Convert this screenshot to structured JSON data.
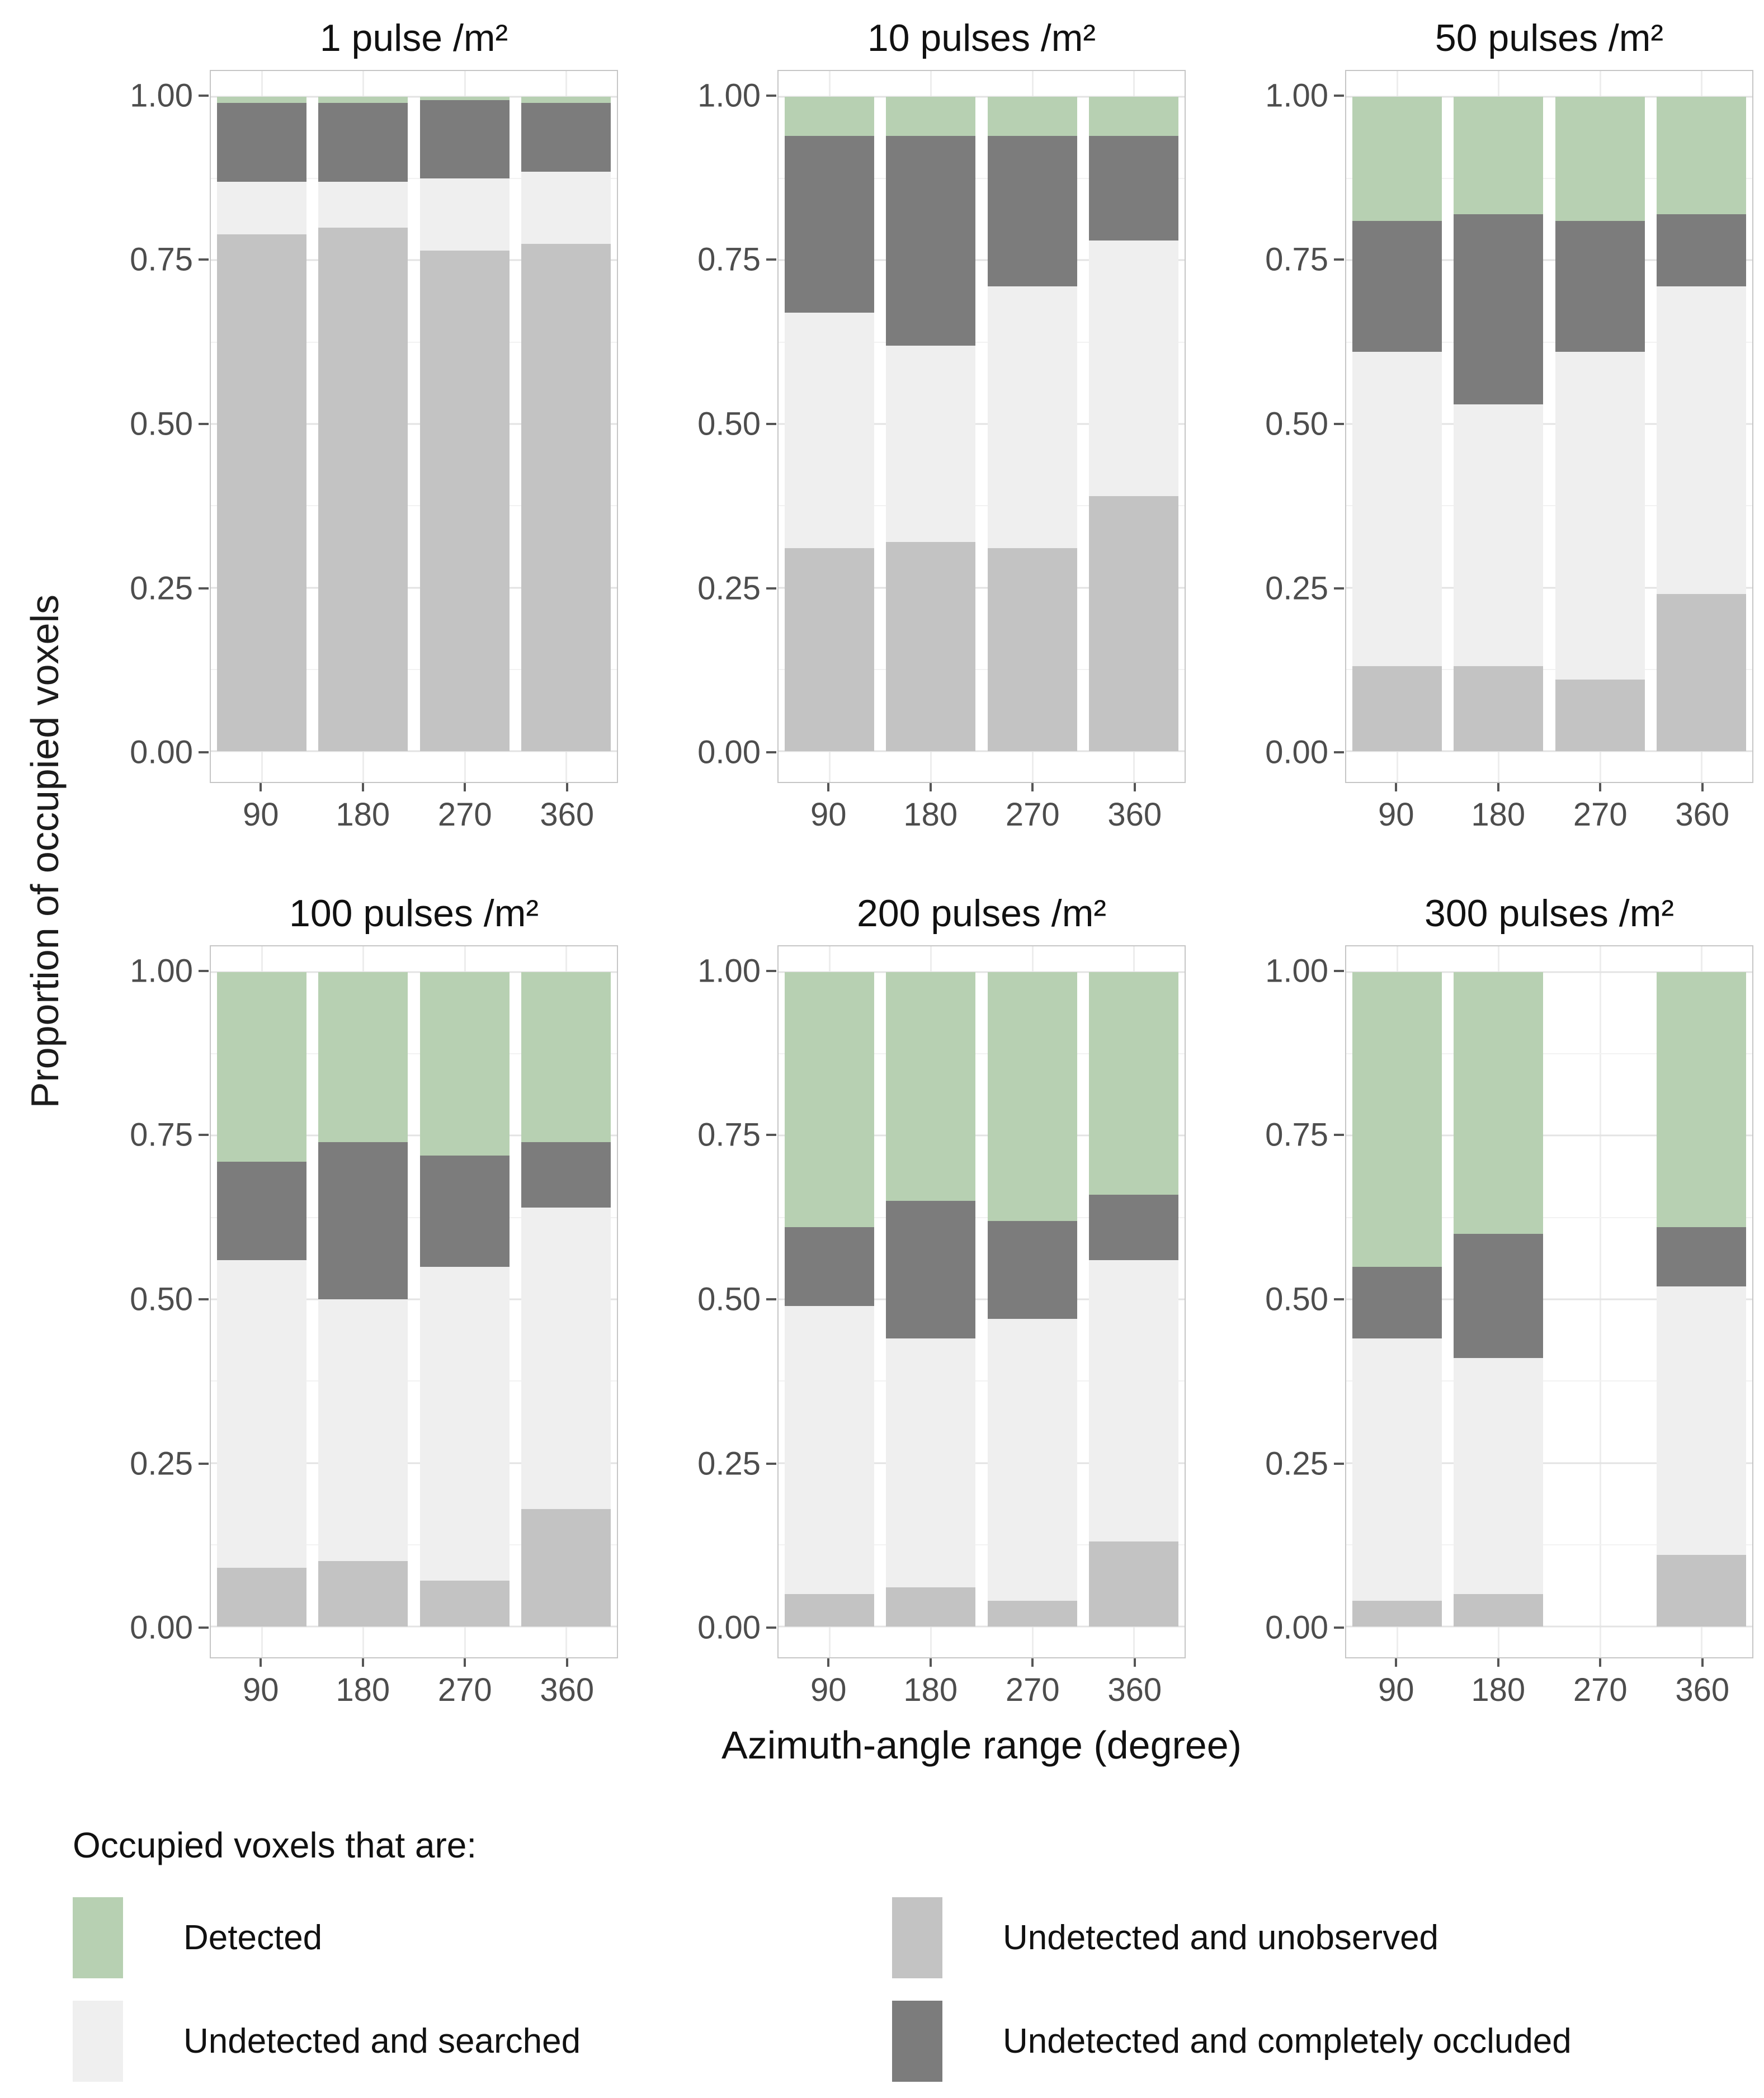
{
  "chart_data": {
    "type": "bar",
    "stacked": true,
    "title": "",
    "xlabel": "Azimuth-angle range (degree)",
    "ylabel": "Proportion of occupied voxels",
    "categories": [
      "90",
      "180",
      "270",
      "360"
    ],
    "ylim": [
      0,
      1
    ],
    "yticks": [
      {
        "value": 1.0,
        "label": "1.00"
      },
      {
        "value": 0.75,
        "label": "0.75"
      },
      {
        "value": 0.5,
        "label": "0.50"
      },
      {
        "value": 0.25,
        "label": "0.25"
      },
      {
        "value": 0.0,
        "label": "0.00"
      }
    ],
    "grid": true,
    "stack_order_bottom_to_top": [
      "unobserved",
      "searched",
      "occluded",
      "detected"
    ],
    "colors": {
      "detected": "#b7d0b2",
      "searched": "#efefef",
      "unobserved": "#c3c3c3",
      "occluded": "#7c7c7c"
    },
    "panels": [
      {
        "title": "1 pulse /m²",
        "series": {
          "unobserved": [
            0.79,
            0.8,
            0.765,
            0.775
          ],
          "searched": [
            0.08,
            0.07,
            0.11,
            0.11
          ],
          "occluded": [
            0.12,
            0.12,
            0.12,
            0.105
          ],
          "detected": [
            0.01,
            0.01,
            0.005,
            0.01
          ]
        }
      },
      {
        "title": "10 pulses /m²",
        "series": {
          "unobserved": [
            0.31,
            0.32,
            0.31,
            0.39
          ],
          "searched": [
            0.36,
            0.3,
            0.4,
            0.39
          ],
          "occluded": [
            0.27,
            0.32,
            0.23,
            0.16
          ],
          "detected": [
            0.06,
            0.06,
            0.06,
            0.06
          ]
        }
      },
      {
        "title": "50 pulses /m²",
        "series": {
          "unobserved": [
            0.13,
            0.13,
            0.11,
            0.24
          ],
          "searched": [
            0.48,
            0.4,
            0.5,
            0.47
          ],
          "occluded": [
            0.2,
            0.29,
            0.2,
            0.11
          ],
          "detected": [
            0.19,
            0.18,
            0.19,
            0.18
          ]
        }
      },
      {
        "title": "100 pulses /m²",
        "series": {
          "unobserved": [
            0.09,
            0.1,
            0.07,
            0.18
          ],
          "searched": [
            0.47,
            0.4,
            0.48,
            0.46
          ],
          "occluded": [
            0.15,
            0.24,
            0.17,
            0.1
          ],
          "detected": [
            0.29,
            0.26,
            0.28,
            0.26
          ]
        }
      },
      {
        "title": "200 pulses /m²",
        "series": {
          "unobserved": [
            0.05,
            0.06,
            0.04,
            0.13
          ],
          "searched": [
            0.44,
            0.38,
            0.43,
            0.43
          ],
          "occluded": [
            0.12,
            0.21,
            0.15,
            0.1
          ],
          "detected": [
            0.39,
            0.35,
            0.38,
            0.34
          ]
        }
      },
      {
        "title": "300 pulses /m²",
        "series": {
          "unobserved": [
            0.04,
            0.05,
            null,
            0.11
          ],
          "searched": [
            0.4,
            0.36,
            null,
            0.41
          ],
          "occluded": [
            0.11,
            0.19,
            null,
            0.09
          ],
          "detected": [
            0.45,
            0.4,
            null,
            0.39
          ]
        }
      }
    ],
    "legend": {
      "title": "Occupied voxels that are:",
      "position": "bottom",
      "items": [
        {
          "key": "detected",
          "label": "Detected",
          "color": "#b7d0b2"
        },
        {
          "key": "searched",
          "label": "Undetected and searched",
          "color": "#efefef"
        },
        {
          "key": "unobserved",
          "label": "Undetected and unobserved",
          "color": "#c3c3c3"
        },
        {
          "key": "occluded",
          "label": "Undetected and completely occluded",
          "color": "#7c7c7c"
        }
      ]
    }
  }
}
